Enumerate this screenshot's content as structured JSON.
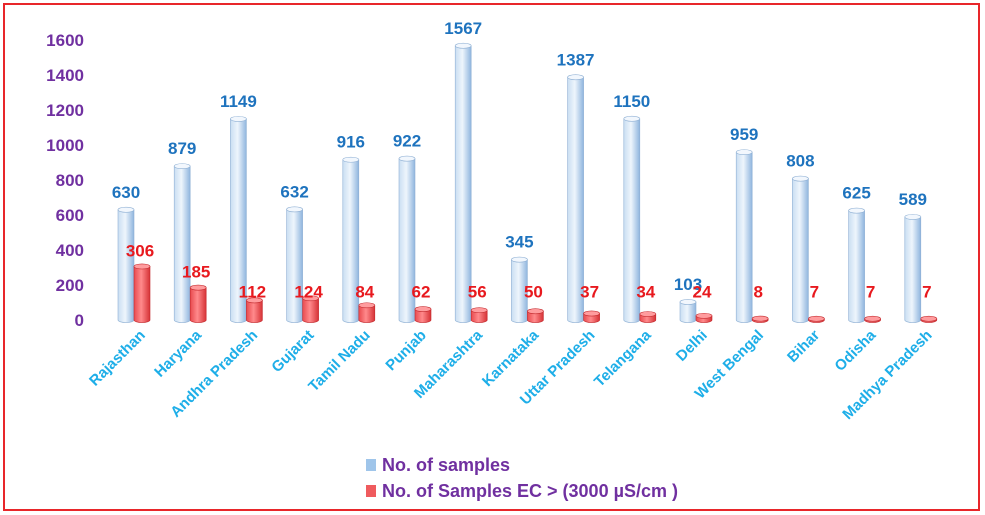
{
  "colors": {
    "series1": "#9fc5ea",
    "series2": "#ef5b5e",
    "axis_text": "#7030a0",
    "category_text": "#1eaee8",
    "label1": "#1e73be",
    "label2": "#e8191e",
    "border": "#e8262a"
  },
  "chart_data": {
    "type": "bar",
    "style": "3d-cylinder",
    "categories": [
      "Rajasthan",
      "Haryana",
      "Andhra Pradesh",
      "Gujarat",
      "Tamil Nadu",
      "Punjab",
      "Maharashtra",
      "Karnataka",
      "Uttar Pradesh",
      "Telangana",
      "Delhi",
      "West Bengal",
      "Bihar",
      "Odisha",
      "Madhya Pradesh"
    ],
    "series": [
      {
        "name": "No. of samples",
        "values": [
          630,
          879,
          1149,
          632,
          916,
          922,
          1567,
          345,
          1387,
          1150,
          103,
          959,
          808,
          625,
          589
        ]
      },
      {
        "name": "No. of Samples EC > (3000 µS/cm )",
        "values": [
          306,
          185,
          112,
          124,
          84,
          62,
          56,
          50,
          37,
          34,
          24,
          8,
          7,
          7,
          7
        ]
      }
    ],
    "yticks": [
      "0",
      "200",
      "400",
      "600",
      "800",
      "1000",
      "1200",
      "1400",
      "1600"
    ],
    "ylim": [
      0,
      1600
    ],
    "grid": false,
    "legend": "bottom"
  }
}
